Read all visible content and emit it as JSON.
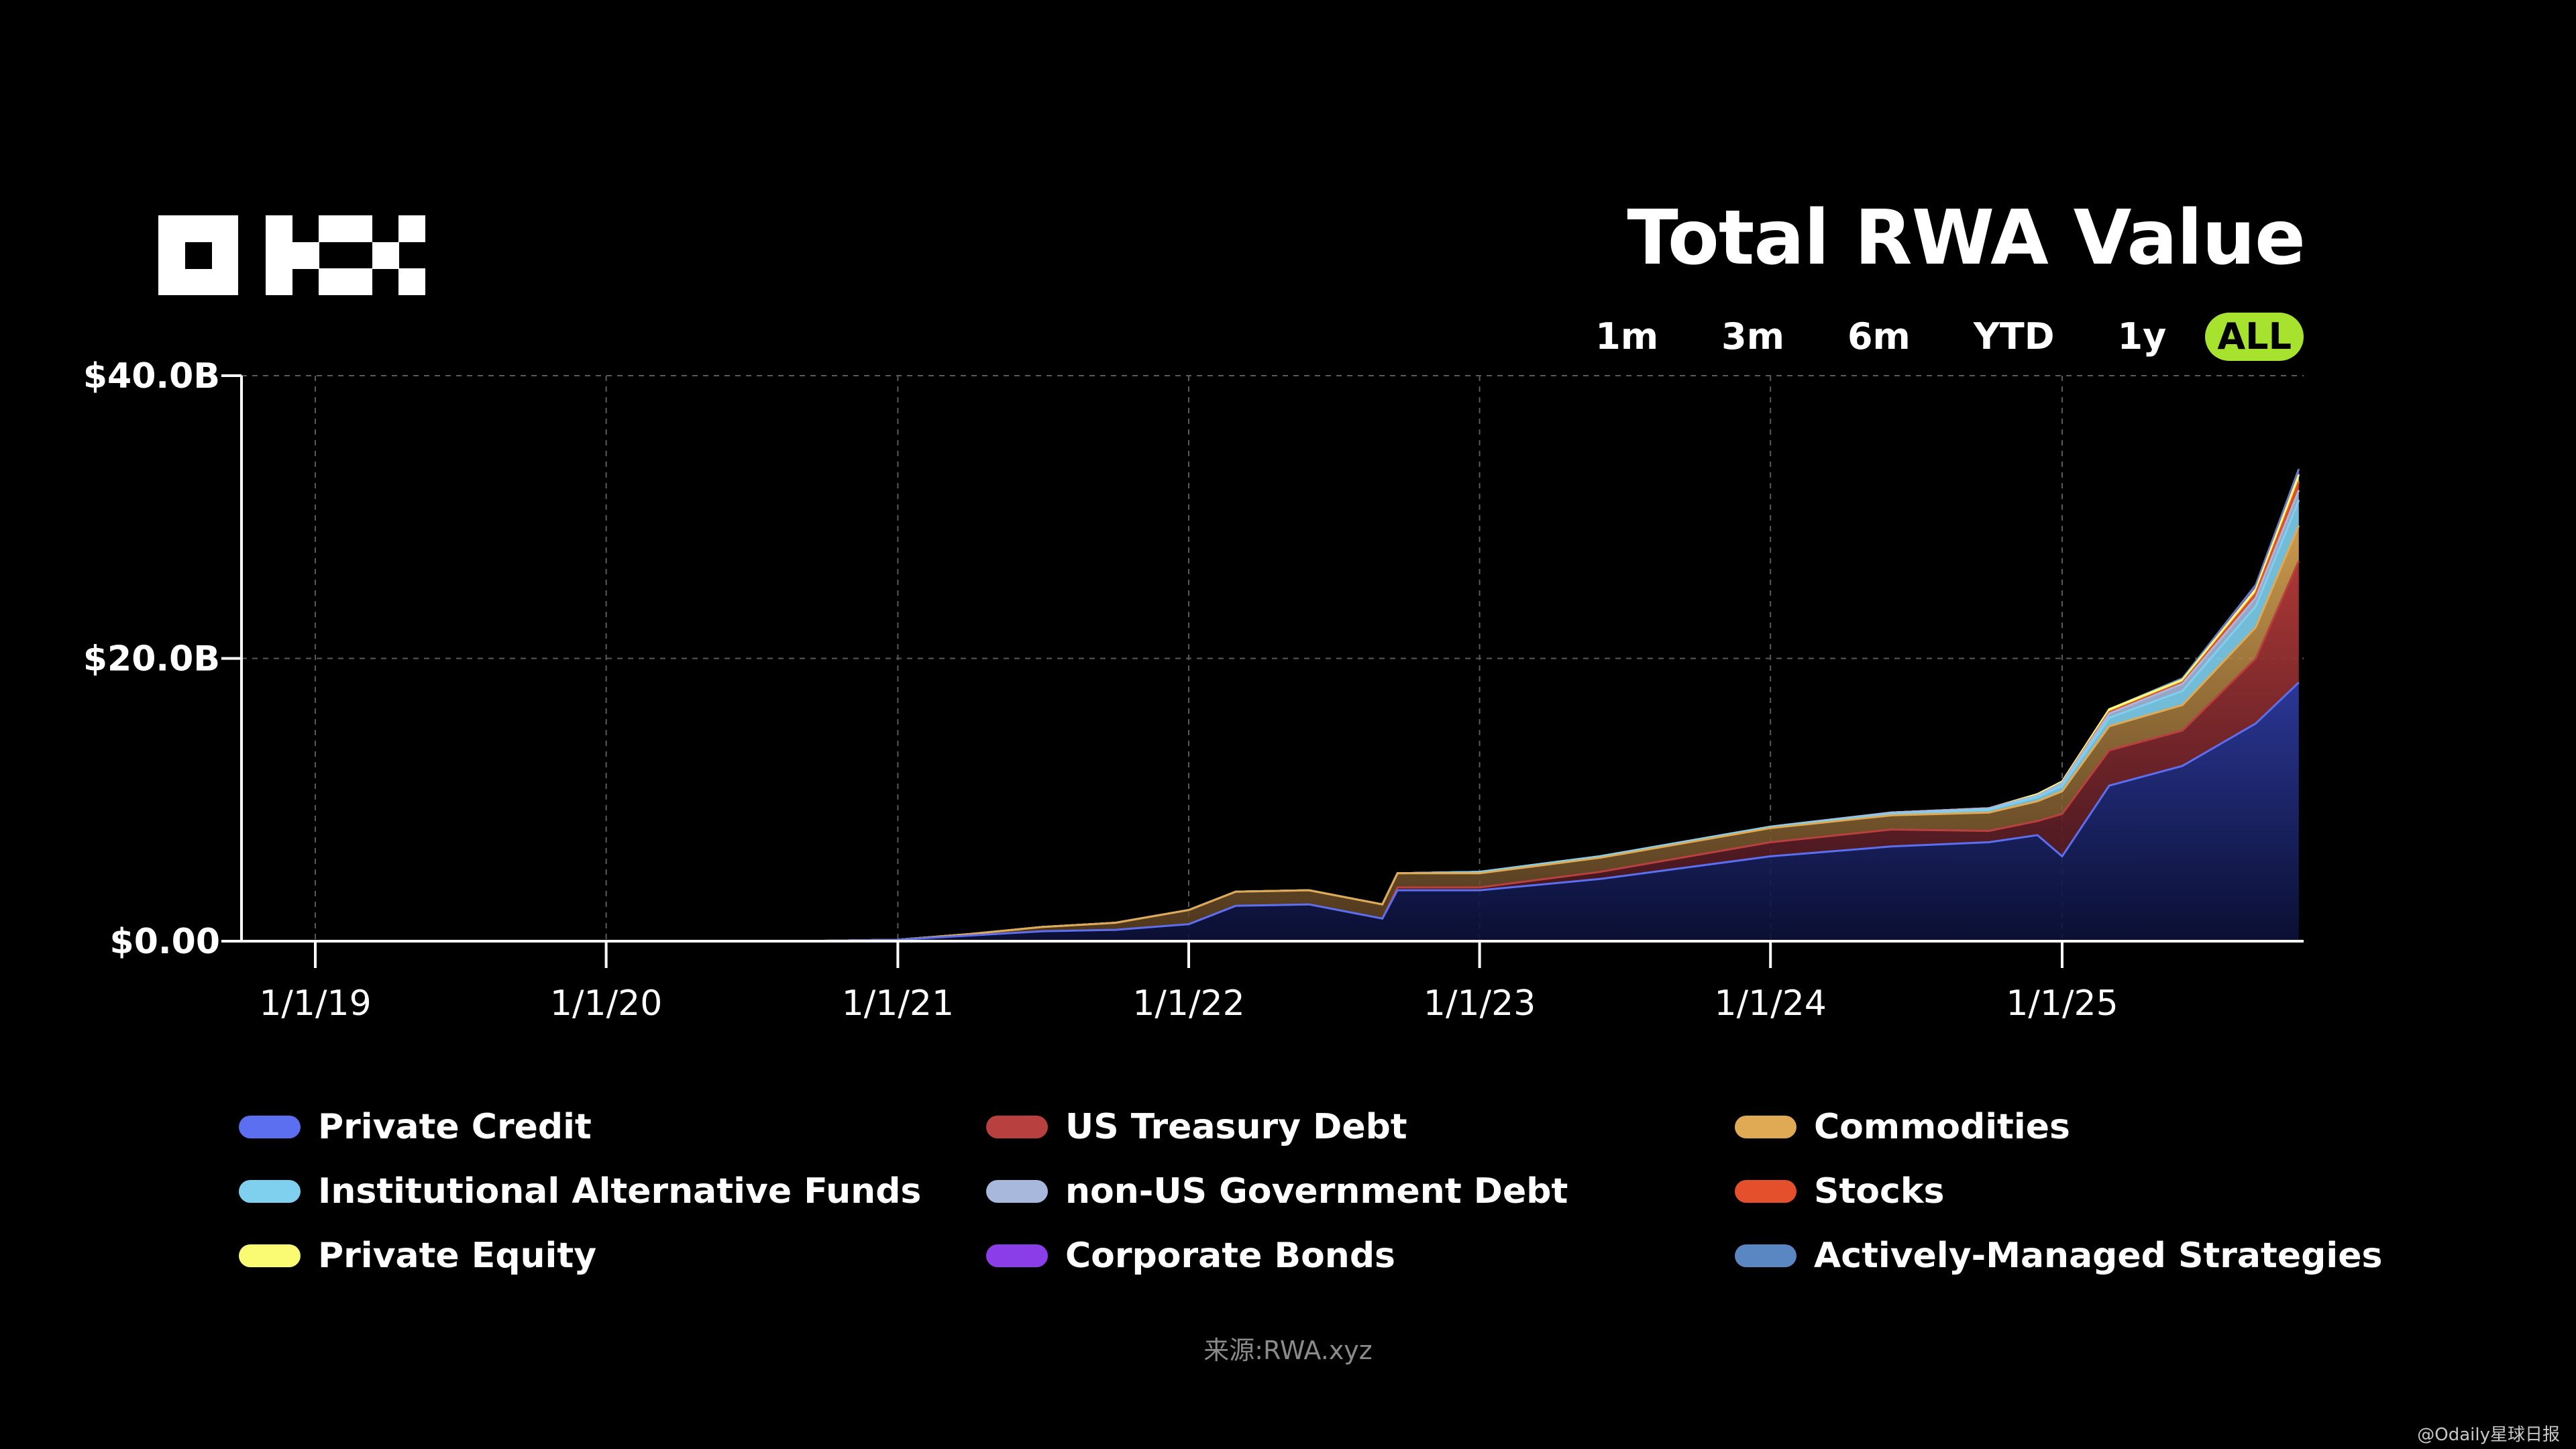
{
  "header": {
    "logo_text": "OKX",
    "title": "Total RWA Value",
    "ranges": [
      "1m",
      "3m",
      "6m",
      "YTD",
      "1y",
      "ALL"
    ],
    "active_range": "ALL",
    "accent_color": "#a6e22e"
  },
  "chart_data": {
    "type": "area",
    "stacked": true,
    "title": "Total RWA Value",
    "xlabel": "",
    "ylabel": "",
    "x_ticks": [
      "1/1/19",
      "1/1/20",
      "1/1/21",
      "1/1/22",
      "1/1/23",
      "1/1/24",
      "1/1/25"
    ],
    "y_ticks": [
      "$0.00",
      "$20.0B",
      "$40.0B"
    ],
    "ylim": [
      0,
      40
    ],
    "y_unit": "billion USD",
    "grid": true,
    "legend_position": "bottom",
    "x": [
      "2018-10-01",
      "2019-01-01",
      "2020-01-01",
      "2020-09-01",
      "2021-01-01",
      "2021-04-01",
      "2021-07-01",
      "2021-10-01",
      "2022-01-01",
      "2022-03-01",
      "2022-06-01",
      "2022-09-01",
      "2022-09-20",
      "2023-01-01",
      "2023-06-01",
      "2024-01-01",
      "2024-06-01",
      "2024-10-01",
      "2024-12-01",
      "2025-01-01",
      "2025-03-01",
      "2025-06-01",
      "2025-09-01",
      "2025-10-25"
    ],
    "series": [
      {
        "name": "Private Credit",
        "color": "#5b6ff0",
        "values": [
          0,
          0,
          0,
          0,
          0.1,
          0.4,
          0.7,
          0.8,
          1.2,
          2.5,
          2.6,
          1.6,
          3.6,
          3.6,
          4.4,
          6.0,
          6.7,
          7.0,
          7.5,
          6.0,
          11.0,
          12.4,
          15.4,
          18.3
        ]
      },
      {
        "name": "US Treasury Debt",
        "color": "#b8403e",
        "values": [
          0,
          0,
          0,
          0,
          0,
          0,
          0,
          0,
          0,
          0,
          0,
          0,
          0.2,
          0.2,
          0.5,
          1.0,
          1.2,
          0.8,
          1.0,
          3.0,
          2.5,
          2.5,
          4.6,
          8.6
        ]
      },
      {
        "name": "Commodities",
        "color": "#e0aa55",
        "values": [
          0,
          0,
          0,
          0,
          0,
          0.1,
          0.3,
          0.5,
          1.0,
          1.0,
          1.0,
          1.0,
          1.0,
          1.0,
          1.0,
          1.0,
          1.0,
          1.3,
          1.4,
          1.6,
          1.7,
          1.8,
          2.2,
          2.5
        ]
      },
      {
        "name": "Institutional Alternative Funds",
        "color": "#7fd0ef",
        "values": [
          0,
          0,
          0,
          0,
          0,
          0,
          0,
          0,
          0,
          0,
          0,
          0,
          0,
          0.1,
          0.1,
          0.1,
          0.1,
          0.2,
          0.3,
          0.4,
          0.6,
          1.0,
          1.5,
          1.8
        ]
      },
      {
        "name": "non-US Government Debt",
        "color": "#a8b8dc",
        "values": [
          0,
          0,
          0,
          0,
          0,
          0,
          0,
          0,
          0,
          0,
          0,
          0,
          0,
          0,
          0,
          0,
          0.1,
          0.1,
          0.1,
          0.2,
          0.3,
          0.5,
          0.6,
          0.7
        ]
      },
      {
        "name": "Stocks",
        "color": "#e4502c",
        "values": [
          0,
          0,
          0,
          0,
          0,
          0,
          0,
          0,
          0,
          0,
          0,
          0,
          0,
          0,
          0,
          0,
          0,
          0,
          0,
          0,
          0.1,
          0.1,
          0.3,
          0.6
        ]
      },
      {
        "name": "Private Equity",
        "color": "#fafa73",
        "values": [
          0,
          0,
          0,
          0,
          0,
          0,
          0,
          0,
          0,
          0,
          0,
          0,
          0,
          0,
          0,
          0,
          0,
          0,
          0.1,
          0.1,
          0.2,
          0.2,
          0.3,
          0.5
        ]
      },
      {
        "name": "Corporate Bonds",
        "color": "#8a3ee8",
        "values": [
          0,
          0,
          0,
          0,
          0,
          0,
          0,
          0,
          0,
          0,
          0,
          0,
          0,
          0,
          0,
          0,
          0,
          0,
          0,
          0,
          0,
          0,
          0.1,
          0.1
        ]
      },
      {
        "name": "Actively-Managed Strategies",
        "color": "#5a86c2",
        "values": [
          0,
          0,
          0,
          0,
          0,
          0,
          0,
          0,
          0,
          0,
          0,
          0,
          0,
          0,
          0,
          0,
          0,
          0,
          0,
          0,
          0,
          0.1,
          0.2,
          0.3
        ]
      }
    ]
  },
  "legend": [
    {
      "label": "Private Credit",
      "color": "#5b6ff0"
    },
    {
      "label": "US Treasury Debt",
      "color": "#b8403e"
    },
    {
      "label": "Commodities",
      "color": "#e0aa55"
    },
    {
      "label": "Institutional Alternative Funds",
      "color": "#7fd0ef"
    },
    {
      "label": "non-US Government Debt",
      "color": "#a8b8dc"
    },
    {
      "label": "Stocks",
      "color": "#e4502c"
    },
    {
      "label": "Private Equity",
      "color": "#fafa73"
    },
    {
      "label": "Corporate Bonds",
      "color": "#8a3ee8"
    },
    {
      "label": "Actively-Managed Strategies",
      "color": "#5a86c2"
    }
  ],
  "source": "来源:RWA.xyz",
  "watermark": "@Odaily星球日报"
}
